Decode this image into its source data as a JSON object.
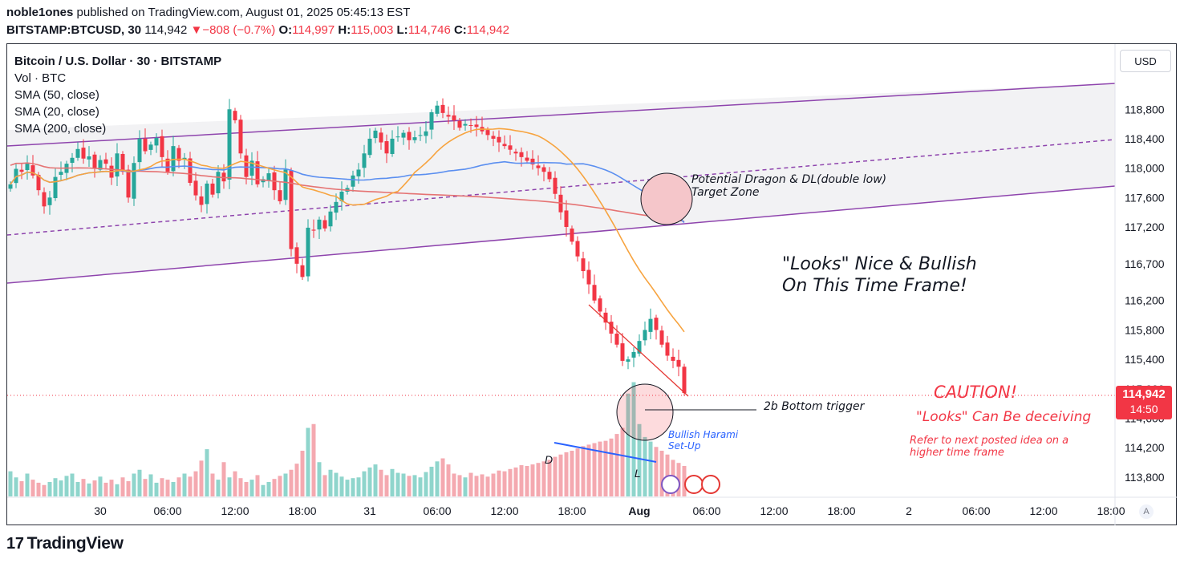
{
  "header": {
    "author": "noble1ones",
    "published_text": "published on TradingView.com, August 01, 2025 05:45:13 EST",
    "symbol": "BITSTAMP:BTCUSD, 30",
    "price": "114,942",
    "change_arrow": "▼",
    "change": "−808 (−0.7%)",
    "o_label": "O:",
    "o": "114,997",
    "h_label": "H:",
    "h": "115,003",
    "l_label": "L:",
    "l": "114,746",
    "c_label": "C:",
    "c": "114,942"
  },
  "legend": {
    "title": "Bitcoin / U.S. Dollar · 30 · BITSTAMP",
    "vol": "Vol · BTC",
    "sma50": "SMA (50, close)",
    "sma20": "SMA (20, close)",
    "sma200": "SMA (200, close)"
  },
  "scale": {
    "currency": "USD",
    "auto": "A"
  },
  "last_price": {
    "value": "114,942",
    "countdown": "14:50"
  },
  "annotations": {
    "dragon_line1": "Potential Dragon & DL(double low)",
    "dragon_line2": "Target Zone",
    "looks_line1": "\"Looks\" Nice & Bullish",
    "looks_line2": "On This Time Frame!",
    "trigger": "2b Bottom trigger",
    "harami_line1": "Bullish Harami",
    "harami_line2": "Set-Up",
    "caution": "CAUTION!",
    "deceiving": "\"Looks\" Can Be deceiving",
    "refer_line1": "Refer to next posted idea on a",
    "refer_line2": "higher time frame",
    "d": "D",
    "l": "L"
  },
  "branding": {
    "logo_text": "TradingView",
    "logo_mark": "17"
  },
  "colors": {
    "up": "#26a69a",
    "down": "#f23645",
    "sma20": "#f7a440",
    "sma50": "#5b8ff0",
    "sma200": "#e57373",
    "channel": "#8e44ad",
    "wedge": "#e53935",
    "trendline": "#2962ff"
  },
  "chart_data": {
    "type": "candlestick",
    "ylim": [
      113700,
      119250
    ],
    "y_ticks": [
      113800,
      114200,
      114600,
      115000,
      115400,
      115800,
      116200,
      116700,
      117200,
      117600,
      118000,
      118400,
      118800
    ],
    "y_tick_labels": [
      "113,800",
      "114,200",
      "114,600",
      "115,000",
      "115,400",
      "115,800",
      "116,200",
      "116,700",
      "117,200",
      "117,600",
      "118,000",
      "118,400",
      "118,800"
    ],
    "x_ticks": [
      {
        "bar": 16,
        "label": "30"
      },
      {
        "bar": 28,
        "label": "06:00"
      },
      {
        "bar": 40,
        "label": "12:00"
      },
      {
        "bar": 52,
        "label": "18:00"
      },
      {
        "bar": 64,
        "label": "31"
      },
      {
        "bar": 76,
        "label": "06:00"
      },
      {
        "bar": 88,
        "label": "12:00"
      },
      {
        "bar": 100,
        "label": "18:00"
      },
      {
        "bar": 112,
        "label": "Aug"
      },
      {
        "bar": 124,
        "label": "06:00"
      },
      {
        "bar": 136,
        "label": "12:00"
      },
      {
        "bar": 148,
        "label": "18:00"
      },
      {
        "bar": 160,
        "label": "2"
      },
      {
        "bar": 172,
        "label": "06:00"
      },
      {
        "bar": 184,
        "label": "12:00"
      },
      {
        "bar": 196,
        "label": "18:00"
      }
    ],
    "last_bar": 120,
    "closes": [
      117780,
      117990,
      117950,
      118060,
      117900,
      117700,
      117480,
      117600,
      117880,
      117950,
      118060,
      118140,
      118260,
      118130,
      118160,
      118000,
      118110,
      118060,
      117870,
      118200,
      117950,
      117600,
      118070,
      118400,
      118230,
      118320,
      118410,
      118150,
      117950,
      118300,
      118100,
      118140,
      117800,
      117630,
      117500,
      117790,
      117640,
      117950,
      117820,
      118800,
      118650,
      118200,
      117880,
      118100,
      117780,
      117850,
      117930,
      117700,
      117550,
      117980,
      116900,
      116700,
      116520,
      117190,
      117150,
      117300,
      117180,
      117410,
      117540,
      117680,
      117730,
      117900,
      117980,
      118200,
      118400,
      118510,
      118350,
      118200,
      118400,
      118430,
      118480,
      118380,
      118420,
      118450,
      118500,
      118760,
      118850,
      118750,
      118700,
      118650,
      118550,
      118600,
      118580,
      118560,
      118500,
      118450,
      118400,
      118350,
      118300,
      118250,
      118200,
      118150,
      118100,
      118050,
      118000,
      117950,
      117850,
      117650,
      117400,
      117200,
      117000,
      116800,
      116600,
      116420,
      116200,
      116050,
      115900,
      115750,
      115600,
      115380,
      115400,
      115500,
      115650,
      115800,
      115950,
      115800,
      115600,
      115450,
      115380,
      115300,
      114942
    ],
    "volume": [
      33,
      25,
      20,
      30,
      22,
      18,
      15,
      19,
      24,
      21,
      27,
      30,
      19,
      23,
      17,
      21,
      26,
      18,
      22,
      16,
      25,
      20,
      30,
      35,
      23,
      29,
      18,
      24,
      22,
      19,
      25,
      30,
      26,
      33,
      47,
      62,
      30,
      22,
      45,
      25,
      33,
      24,
      19,
      22,
      28,
      15,
      19,
      23,
      27,
      30,
      35,
      43,
      60,
      90,
      95,
      45,
      28,
      35,
      31,
      26,
      22,
      24,
      25,
      33,
      38,
      42,
      35,
      28,
      36,
      31,
      30,
      27,
      28,
      25,
      32,
      39,
      46,
      50,
      42,
      30,
      28,
      25,
      31,
      27,
      29,
      26,
      30,
      34,
      33,
      36,
      38,
      41,
      40,
      42,
      44,
      46,
      48,
      52,
      55,
      58,
      60,
      63,
      66,
      68,
      70,
      72,
      73,
      76,
      82,
      90,
      135,
      150,
      95,
      78,
      72,
      65,
      60,
      55,
      48,
      44,
      40
    ]
  }
}
